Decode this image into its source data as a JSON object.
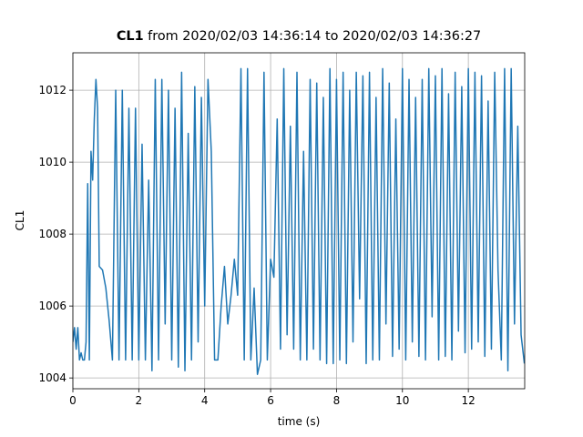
{
  "chart_data": {
    "type": "line",
    "title": {
      "name": "CL1",
      "text": "from 2020/02/03 14:36:14 to 2020/02/03 14:36:27"
    },
    "x_label": "time (s)",
    "y_label": "CL1",
    "x": [
      0,
      0.05,
      0.1,
      0.15,
      0.2,
      0.25,
      0.3,
      0.35,
      0.4,
      0.45,
      0.5,
      0.55,
      0.6,
      0.65,
      0.7,
      0.75,
      0.8,
      0.9,
      1.0,
      1.1,
      1.2,
      1.3,
      1.4,
      1.5,
      1.6,
      1.7,
      1.8,
      1.9,
      2.0,
      2.1,
      2.2,
      2.3,
      2.4,
      2.5,
      2.6,
      2.7,
      2.8,
      2.9,
      3.0,
      3.1,
      3.2,
      3.3,
      3.4,
      3.5,
      3.6,
      3.7,
      3.8,
      3.9,
      4.0,
      4.1,
      4.2,
      4.3,
      4.4,
      4.5,
      4.6,
      4.7,
      4.8,
      4.9,
      5.0,
      5.1,
      5.2,
      5.3,
      5.4,
      5.5,
      5.6,
      5.7,
      5.8,
      5.9,
      6.0,
      6.1,
      6.2,
      6.3,
      6.4,
      6.5,
      6.6,
      6.7,
      6.8,
      6.9,
      7.0,
      7.1,
      7.2,
      7.3,
      7.4,
      7.5,
      7.6,
      7.7,
      7.8,
      7.9,
      8.0,
      8.1,
      8.2,
      8.3,
      8.4,
      8.5,
      8.6,
      8.7,
      8.8,
      8.9,
      9.0,
      9.1,
      9.2,
      9.3,
      9.4,
      9.5,
      9.6,
      9.7,
      9.8,
      9.9,
      10.0,
      10.1,
      10.2,
      10.3,
      10.4,
      10.5,
      10.6,
      10.7,
      10.8,
      10.9,
      11.0,
      11.1,
      11.2,
      11.3,
      11.4,
      11.5,
      11.6,
      11.7,
      11.8,
      11.9,
      12.0,
      12.1,
      12.2,
      12.3,
      12.4,
      12.5,
      12.6,
      12.7,
      12.8,
      12.9,
      13.0,
      13.1,
      13.2,
      13.3,
      13.4,
      13.5,
      13.6,
      13.7
    ],
    "series": [
      {
        "color": "#1f77b4",
        "values": [
          1005.0,
          1005.4,
          1004.8,
          1005.4,
          1004.5,
          1004.7,
          1004.5,
          1004.5,
          1005.0,
          1009.4,
          1004.5,
          1010.3,
          1009.5,
          1011.2,
          1012.3,
          1011.5,
          1007.1,
          1007.0,
          1006.5,
          1005.6,
          1004.5,
          1012.0,
          1004.5,
          1012.0,
          1004.5,
          1011.5,
          1004.5,
          1011.5,
          1004.5,
          1010.5,
          1004.5,
          1009.5,
          1004.2,
          1012.3,
          1004.5,
          1012.3,
          1005.5,
          1012.0,
          1004.5,
          1011.5,
          1004.3,
          1012.5,
          1004.2,
          1010.8,
          1004.5,
          1012.1,
          1005.0,
          1011.8,
          1006.0,
          1012.3,
          1010.3,
          1004.5,
          1004.5,
          1006.0,
          1007.1,
          1005.5,
          1006.3,
          1007.3,
          1006.3,
          1012.6,
          1004.5,
          1012.6,
          1004.5,
          1006.5,
          1004.1,
          1004.5,
          1012.5,
          1004.5,
          1007.3,
          1006.8,
          1011.2,
          1004.8,
          1012.6,
          1005.2,
          1011.0,
          1004.8,
          1012.5,
          1004.5,
          1010.3,
          1004.5,
          1012.3,
          1004.8,
          1012.2,
          1004.5,
          1011.8,
          1004.4,
          1012.6,
          1004.4,
          1012.3,
          1004.5,
          1012.5,
          1004.4,
          1012.0,
          1005.0,
          1012.5,
          1006.2,
          1012.4,
          1004.4,
          1012.5,
          1004.5,
          1011.8,
          1004.5,
          1012.6,
          1005.5,
          1012.2,
          1004.6,
          1011.2,
          1004.8,
          1012.6,
          1004.5,
          1012.3,
          1005.0,
          1011.8,
          1004.6,
          1012.3,
          1004.5,
          1012.6,
          1005.7,
          1012.4,
          1004.5,
          1012.6,
          1004.6,
          1011.9,
          1004.5,
          1012.5,
          1005.3,
          1012.1,
          1004.7,
          1012.6,
          1004.8,
          1012.5,
          1005.0,
          1012.4,
          1004.6,
          1011.7,
          1004.8,
          1012.5,
          1007.0,
          1004.5,
          1012.6,
          1004.2,
          1012.6,
          1005.5,
          1011.0,
          1005.2,
          1004.4
        ]
      }
    ],
    "xlim": [
      0,
      13.71
    ],
    "ylim": [
      1003.7,
      1013.04
    ],
    "xticks": [
      0,
      2,
      4,
      6,
      8,
      10,
      12
    ],
    "yticks": [
      1004,
      1006,
      1008,
      1010,
      1012
    ],
    "grid": true
  }
}
